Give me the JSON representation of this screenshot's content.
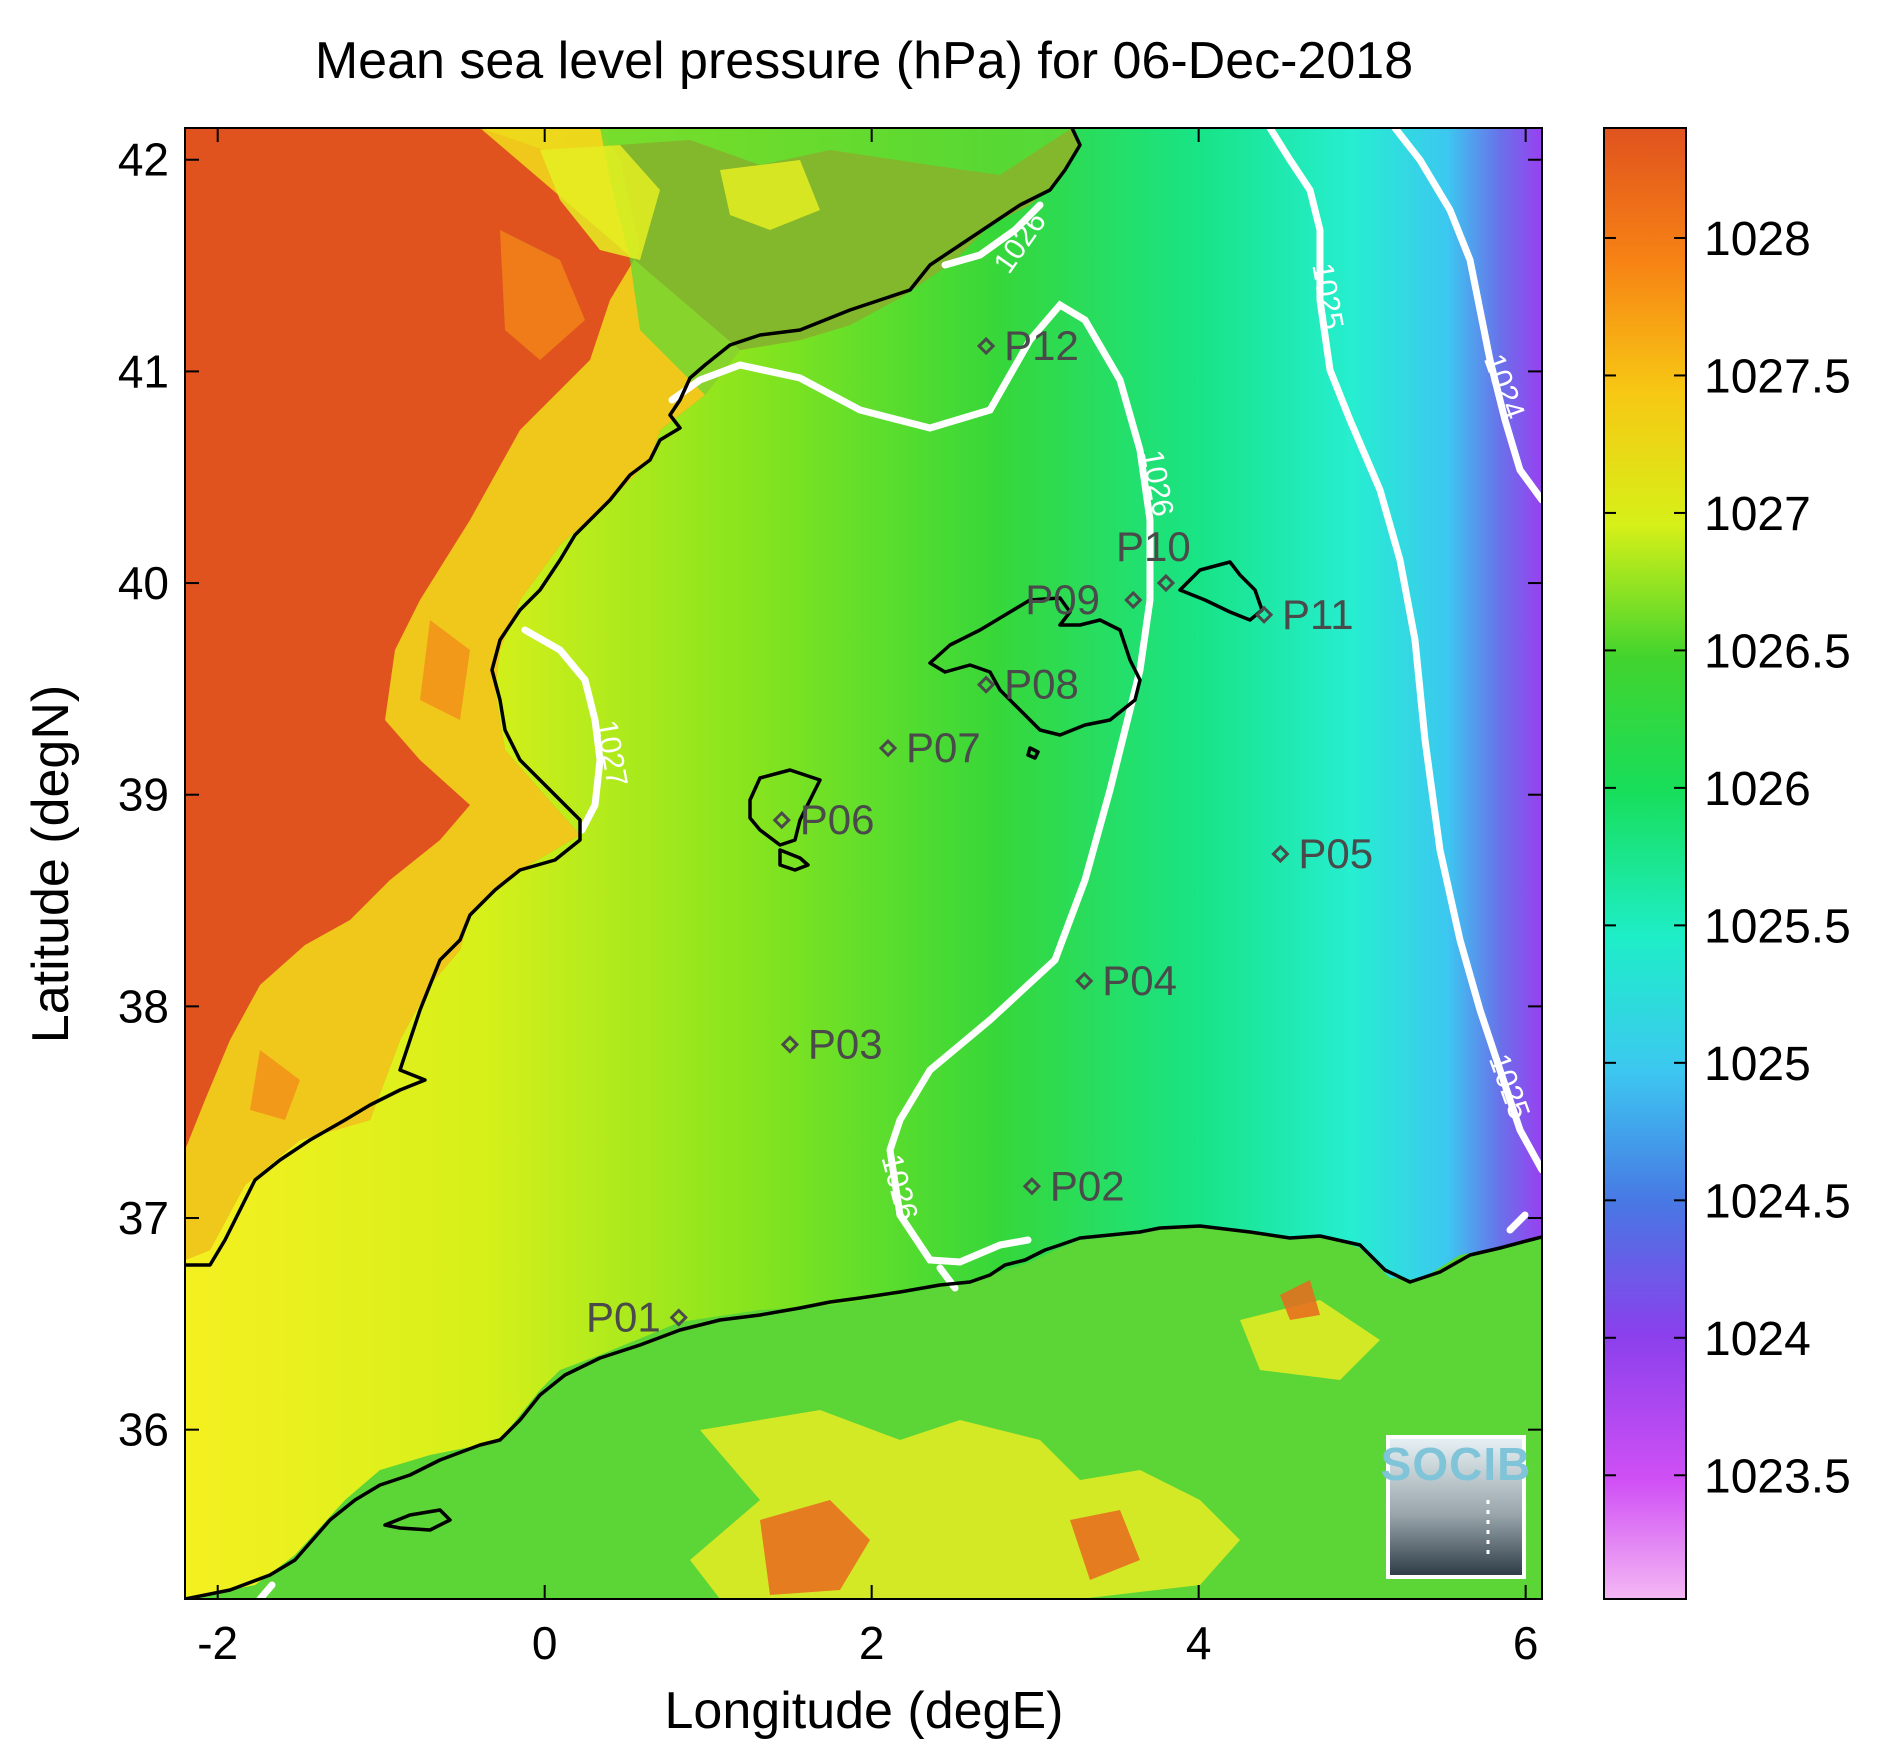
{
  "title": "Mean sea level pressure (hPa) for 06-Dec-2018",
  "xlabel": "Longitude (degE)",
  "ylabel": "Latitude (degN)",
  "x_ticks": [
    "-2",
    "0",
    "2",
    "4",
    "6"
  ],
  "y_ticks": [
    "36",
    "37",
    "38",
    "39",
    "40",
    "41",
    "42"
  ],
  "colorbar": {
    "ticks": [
      "1023.5",
      "1024",
      "1024.5",
      "1025",
      "1025.5",
      "1026",
      "1026.5",
      "1027",
      "1027.5",
      "1028"
    ],
    "range": [
      1023.05,
      1028.4
    ]
  },
  "contour_labels": [
    "1026",
    "1025",
    "1024",
    "1026",
    "1027",
    "1026",
    "1025"
  ],
  "points": [
    {
      "name": "P01",
      "lon": 0.82,
      "lat": 36.53
    },
    {
      "name": "P02",
      "lon": 2.98,
      "lat": 37.15
    },
    {
      "name": "P03",
      "lon": 1.5,
      "lat": 37.82
    },
    {
      "name": "P04",
      "lon": 3.3,
      "lat": 38.12
    },
    {
      "name": "P05",
      "lon": 4.5,
      "lat": 38.72
    },
    {
      "name": "P06",
      "lon": 1.45,
      "lat": 38.88
    },
    {
      "name": "P07",
      "lon": 2.1,
      "lat": 39.22
    },
    {
      "name": "P08",
      "lon": 2.7,
      "lat": 39.52
    },
    {
      "name": "P09",
      "lon": 3.6,
      "lat": 39.92
    },
    {
      "name": "P10",
      "lon": 3.8,
      "lat": 40.0
    },
    {
      "name": "P11",
      "lon": 4.4,
      "lat": 39.85
    },
    {
      "name": "P12",
      "lon": 2.7,
      "lat": 41.12
    }
  ],
  "logo": {
    "text": "SOCIB"
  },
  "colors": {
    "high": "#e0531f",
    "mid": "#2ed22e",
    "low": "#ff9cff",
    "contour": "#ffffff",
    "coast": "#000000",
    "marker": "#4a4a4a"
  }
}
